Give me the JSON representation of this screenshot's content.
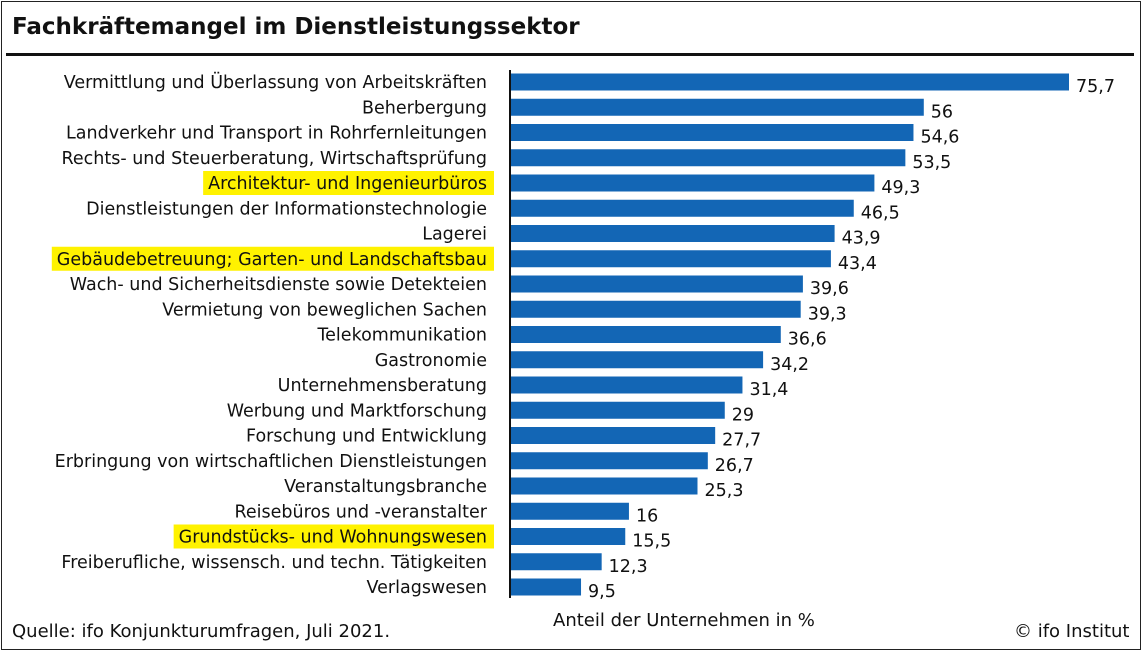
{
  "title": "Fachkräftemangel im Dienstleistungssektor",
  "source": "Quelle: ifo Konjunkturumfragen, Juli 2021.",
  "credit": "© ifo Institut",
  "colors": {
    "bar": "#1366b5",
    "highlight": "#fff200",
    "text": "#111111"
  },
  "chart_data": {
    "type": "bar",
    "orientation": "horizontal",
    "title": "Fachkräftemangel im Dienstleistungssektor",
    "xlabel": "Anteil der Unternehmen in %",
    "ylabel": "",
    "xlim": [
      0,
      80
    ],
    "grid": false,
    "categories": [
      "Vermittlung und Überlassung von Arbeitskräften",
      "Beherbergung",
      "Landverkehr und Transport in Rohrfernleitungen",
      "Rechts- und Steuerberatung, Wirtschaftsprüfung",
      "Architektur- und Ingenieurbüros",
      "Dienstleistungen der Informationstechnologie",
      "Lagerei",
      "Gebäudebetreuung; Garten- und Landschaftsbau",
      "Wach- und Sicherheitsdienste sowie Detekteien",
      "Vermietung von beweglichen Sachen",
      "Telekommunikation",
      "Gastronomie",
      "Unternehmensberatung",
      "Werbung und Marktforschung",
      "Forschung und Entwicklung",
      "Erbringung von wirtschaftlichen Dienstleistungen",
      "Veranstaltungsbranche",
      "Reisebüros und -veranstalter",
      "Grundstücks- und Wohnungswesen",
      "Freiberufliche, wissensch. und techn. Tätigkeiten",
      "Verlagswesen"
    ],
    "values": [
      75.7,
      56,
      54.6,
      53.5,
      49.3,
      46.5,
      43.9,
      43.4,
      39.6,
      39.3,
      36.6,
      34.2,
      31.4,
      29,
      27.7,
      26.7,
      25.3,
      16,
      15.5,
      12.3,
      9.5
    ],
    "value_labels": [
      "75,7",
      "56",
      "54,6",
      "53,5",
      "49,3",
      "46,5",
      "43,9",
      "43,4",
      "39,6",
      "39,3",
      "36,6",
      "34,2",
      "31,4",
      "29",
      "27,7",
      "26,7",
      "25,3",
      "16",
      "15,5",
      "12,3",
      "9,5"
    ],
    "highlighted": [
      false,
      false,
      false,
      false,
      true,
      false,
      false,
      true,
      false,
      false,
      false,
      false,
      false,
      false,
      false,
      false,
      false,
      false,
      true,
      false,
      false
    ]
  }
}
